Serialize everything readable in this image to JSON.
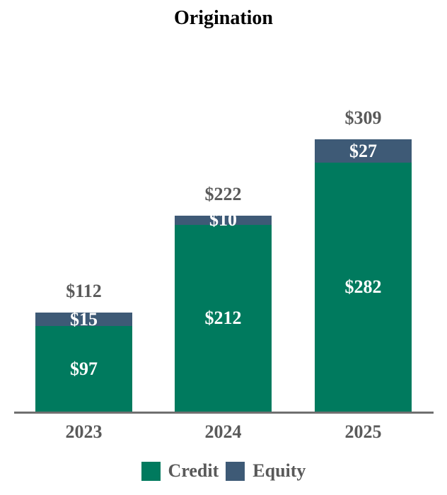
{
  "title": "Origination",
  "colors": {
    "credit": "#007A5E",
    "equity": "#3E5A76",
    "label_gray": "#595959",
    "bar_label_white": "#FFFFFF",
    "axis_line": "#6F6F6F",
    "title": "#000000"
  },
  "chart_data": {
    "type": "bar",
    "stacked": true,
    "title": "Origination",
    "categories": [
      "2023",
      "2024",
      "2025"
    ],
    "series": [
      {
        "name": "Credit",
        "values": [
          97,
          212,
          282
        ],
        "color": "#007A5E"
      },
      {
        "name": "Equity",
        "values": [
          15,
          10,
          27
        ],
        "color": "#3E5A76"
      }
    ],
    "totals": [
      112,
      222,
      309
    ],
    "value_prefix": "$",
    "ylim": [
      0,
      330
    ],
    "grid": false,
    "legend_position": "bottom",
    "xlabel": "",
    "ylabel": ""
  },
  "legend": {
    "items": [
      {
        "label": "Credit",
        "color": "#007A5E"
      },
      {
        "label": "Equity",
        "color": "#3E5A76"
      }
    ]
  }
}
